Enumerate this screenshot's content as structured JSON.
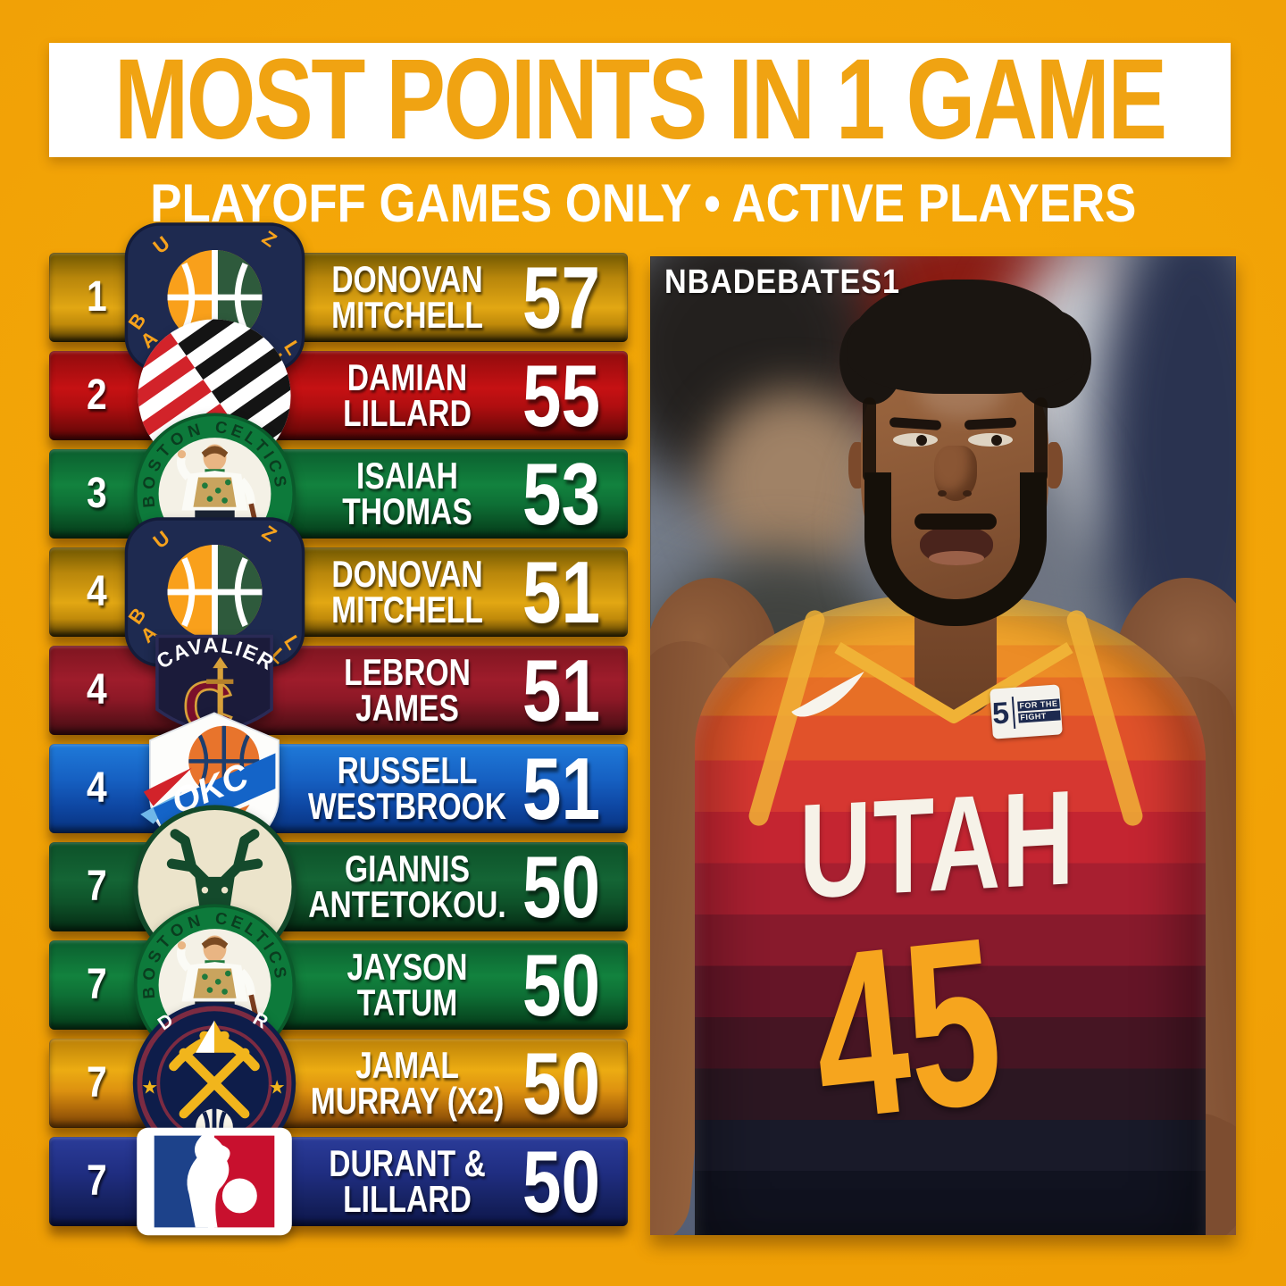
{
  "header": {
    "title": "MOST POINTS IN 1 GAME",
    "subtitle": "PLAYOFF GAMES ONLY • ACTIVE PLAYERS"
  },
  "colors": {
    "background": "#F1A106",
    "title_box": "#FFFFFF",
    "title_text": "#F0A312",
    "subtitle_text": "#FFFFFF",
    "row_text": "#FFFFFF",
    "jersey_text": "#F6F2E8",
    "jersey_number": "#F6A51E",
    "jersey_trim": "#F0B236",
    "palette": {
      "gold": [
        [
          "#6e5600",
          0
        ],
        [
          "#b8860b",
          28
        ],
        [
          "#e2a713",
          62
        ],
        [
          "#c08a0a",
          80
        ],
        [
          "#6b4e04",
          94
        ],
        [
          "#2e2402",
          100
        ]
      ],
      "red": [
        [
          "#8f0b0d",
          0
        ],
        [
          "#c61113",
          42
        ],
        [
          "#b00e10",
          62
        ],
        [
          "#6f0808",
          90
        ],
        [
          "#4a0505",
          100
        ]
      ],
      "green": [
        [
          "#0b5e2e",
          0
        ],
        [
          "#12823e",
          40
        ],
        [
          "#0e6f35",
          62
        ],
        [
          "#07461f",
          90
        ],
        [
          "#053317",
          100
        ]
      ],
      "wine": [
        [
          "#7e1520",
          0
        ],
        [
          "#9e1c2b",
          38
        ],
        [
          "#8d1826",
          60
        ],
        [
          "#571018",
          88
        ],
        [
          "#3a0a10",
          100
        ]
      ],
      "blue": [
        [
          "#1f7ad9",
          0
        ],
        [
          "#1660c2",
          40
        ],
        [
          "#0e47a3",
          70
        ],
        [
          "#0a3a8c",
          88
        ],
        [
          "#072c6e",
          100
        ]
      ],
      "darkgreen": [
        [
          "#0d5129",
          0
        ],
        [
          "#146535",
          42
        ],
        [
          "#0e5229",
          68
        ],
        [
          "#073318",
          92
        ],
        [
          "#052712",
          100
        ]
      ],
      "nuggets": [
        [
          "#bb8007",
          0
        ],
        [
          "#ecac12",
          35
        ],
        [
          "#dd9210",
          58
        ],
        [
          "#b06a0a",
          78
        ],
        [
          "#8a4e07",
          92
        ],
        [
          "#6e3c05",
          100
        ]
      ],
      "navy": [
        [
          "#2b3c99",
          0
        ],
        [
          "#1f2d80",
          42
        ],
        [
          "#172364",
          70
        ],
        [
          "#101a52",
          90
        ],
        [
          "#0b123e",
          100
        ]
      ]
    }
  },
  "chart_data": {
    "type": "table",
    "title": "MOST POINTS IN 1 GAME",
    "subtitle": "PLAYOFF GAMES ONLY • ACTIVE PLAYERS",
    "columns": [
      "Rank",
      "Team",
      "Player",
      "Points"
    ],
    "rows": [
      {
        "rank": "1",
        "team": "Utah Jazz",
        "logo": "jazz",
        "style": "gold",
        "player_line1": "DONOVAN",
        "player_line2": "MITCHELL",
        "points": "57"
      },
      {
        "rank": "2",
        "team": "Portland Trail Blazers",
        "logo": "blazers",
        "style": "red",
        "player_line1": "DAMIAN",
        "player_line2": "LILLARD",
        "points": "55"
      },
      {
        "rank": "3",
        "team": "Boston Celtics",
        "logo": "celtics",
        "style": "green",
        "player_line1": "ISAIAH",
        "player_line2": "THOMAS",
        "points": "53"
      },
      {
        "rank": "4",
        "team": "Utah Jazz",
        "logo": "jazz",
        "style": "gold",
        "player_line1": "DONOVAN",
        "player_line2": "MITCHELL",
        "points": "51"
      },
      {
        "rank": "4",
        "team": "Cleveland Cavaliers",
        "logo": "cavs",
        "style": "wine",
        "player_line1": "LEBRON",
        "player_line2": "JAMES",
        "points": "51"
      },
      {
        "rank": "4",
        "team": "Oklahoma City Thunder",
        "logo": "okc",
        "style": "blue",
        "player_line1": "RUSSELL",
        "player_line2": "WESTBROOK",
        "points": "51"
      },
      {
        "rank": "7",
        "team": "Milwaukee Bucks",
        "logo": "bucks",
        "style": "darkgreen",
        "player_line1": "GIANNIS",
        "player_line2": "ANTETOKOU.",
        "points": "50"
      },
      {
        "rank": "7",
        "team": "Boston Celtics",
        "logo": "celtics",
        "style": "green",
        "player_line1": "JAYSON",
        "player_line2": "TATUM",
        "points": "50"
      },
      {
        "rank": "7",
        "team": "Denver Nuggets",
        "logo": "nuggets",
        "style": "nuggets",
        "player_line1": "JAMAL",
        "player_line2": "MURRAY (X2)",
        "points": "50"
      },
      {
        "rank": "7",
        "team": "NBA",
        "logo": "nba",
        "style": "navy",
        "player_line1": "DURANT &",
        "player_line2": "LILLARD",
        "points": "50"
      }
    ]
  },
  "photo": {
    "watermark": "NBADEBATES1",
    "jersey_team": "UTAH",
    "jersey_number": "45",
    "patch_number": "5",
    "patch_line1": "FOR THE",
    "patch_line2": "FIGHT"
  }
}
